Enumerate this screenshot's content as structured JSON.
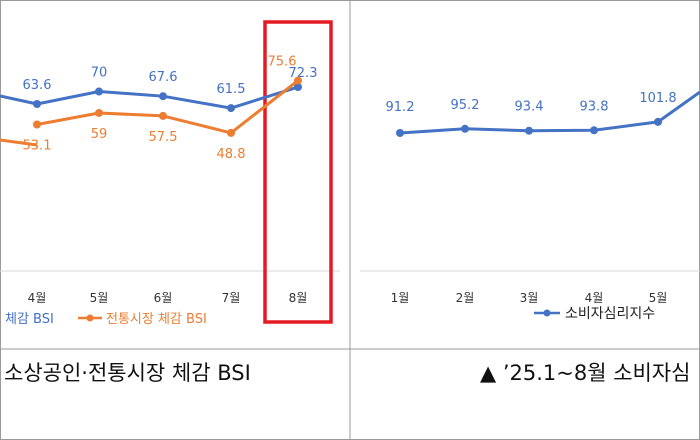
{
  "chart_data": [
    {
      "type": "line",
      "categories": [
        "4월",
        "5월",
        "6월",
        "7월",
        "8월"
      ],
      "series": [
        {
          "name": "소상공인 체감 BSI",
          "values": [
            63.6,
            70,
            67.6,
            61.5,
            72.3
          ],
          "labels": [
            "63.6",
            "70",
            "67.6",
            "61.5",
            "72.3"
          ],
          "color": "#4472c4",
          "legend_visible": "체감 BSI"
        },
        {
          "name": "전통시장 체감 BSI",
          "values": [
            53.1,
            59,
            57.5,
            48.8,
            75.6
          ],
          "labels": [
            "53.1",
            "59",
            "57.5",
            "48.8",
            "75.6"
          ],
          "color": "#ed7d31",
          "legend_visible": "전통시장 체감 BSI"
        }
      ],
      "caption": "소상공인·전통시장 체감 BSI",
      "highlight": {
        "category": "8월",
        "color": "#e31b23"
      },
      "legend": "bottom"
    },
    {
      "type": "line",
      "categories": [
        "1월",
        "2월",
        "3월",
        "4월",
        "5월"
      ],
      "series": [
        {
          "name": "소비자심리지수",
          "values": [
            91.2,
            95.2,
            93.4,
            93.8,
            101.8
          ],
          "labels": [
            "91.2",
            "95.2",
            "93.4",
            "93.8",
            "101.8"
          ],
          "color": "#4472c4"
        }
      ],
      "caption": "▲ ’25.1~8월 소비자심",
      "legend": "bottom"
    }
  ]
}
